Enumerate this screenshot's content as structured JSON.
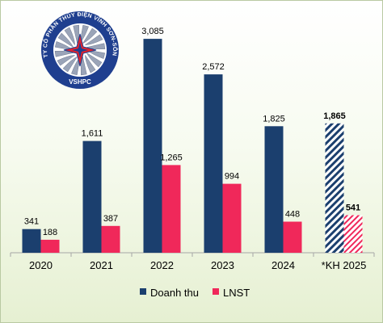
{
  "chart_data": {
    "type": "bar",
    "categories": [
      "2020",
      "2021",
      "2022",
      "2023",
      "2024",
      "*KH 2025"
    ],
    "series": [
      {
        "name": "Doanh thu",
        "values": [
          341,
          1611,
          3085,
          2572,
          1825,
          1865
        ],
        "labels": [
          "341",
          "1,611",
          "3,085",
          "2,572",
          "1,825",
          "1,865"
        ],
        "color": "#1b3f6e"
      },
      {
        "name": "LNST",
        "values": [
          188,
          387,
          1265,
          994,
          448,
          541
        ],
        "labels": [
          "188",
          "387",
          "1,265",
          "994",
          "448",
          "541"
        ],
        "color": "#f0285a"
      }
    ],
    "planned_category": "*KH 2025",
    "ylim": [
      0,
      3400
    ],
    "grid": false,
    "legend_position": "bottom",
    "title": "",
    "xlabel": "",
    "ylabel": ""
  },
  "logo": {
    "company_name": "CÔNG TY CỔ PHẦN THỦY ĐIỆN VĨNH SƠN-SÔNG HINH",
    "abbreviation": "VSHPC",
    "colors": {
      "ring": "#1f3f8f",
      "inner": "#ffffff",
      "star": "#e8232a",
      "blades": "#9aa4b8"
    }
  }
}
